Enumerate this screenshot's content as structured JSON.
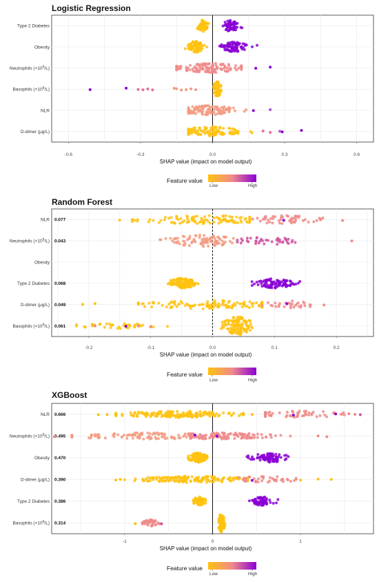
{
  "figure": {
    "legend": {
      "title": "Feature value",
      "low": "Low",
      "high": "High",
      "colors": [
        "#ffc20e",
        "#f08a8a",
        "#8a00d6"
      ]
    }
  },
  "chart_data": [
    {
      "type": "scatter",
      "subtype": "shap-beeswarm",
      "title": "Logistic Regression",
      "xlabel": "SHAP value (impact on model output)",
      "xlim": [
        -0.67,
        0.67
      ],
      "xticks": [
        -0.6,
        -0.3,
        0.0,
        0.3,
        0.6
      ],
      "xtick_labels": [
        "-0.6",
        "-0.3",
        "0.0",
        "0.3",
        "0.6"
      ],
      "zero_line": "solid",
      "grid": true,
      "features": [
        {
          "name": "Type 2 Diabetes",
          "sup": "",
          "suffix": "",
          "importance": null,
          "clusters": [
            {
              "center": -0.04,
              "spread": 0.012,
              "n": 60,
              "color": "#ffc20e",
              "h": 0.55
            },
            {
              "center": 0.075,
              "spread": 0.018,
              "n": 60,
              "color": "#8a00d6",
              "h": 0.55
            }
          ],
          "scatter": []
        },
        {
          "name": "Obesity",
          "sup": "",
          "suffix": "",
          "importance": null,
          "clusters": [
            {
              "center": -0.07,
              "spread": 0.018,
              "n": 80,
              "color": "#ffc20e",
              "h": 0.55
            },
            {
              "center": 0.09,
              "spread": 0.025,
              "n": 80,
              "color": "#8a00d6",
              "h": 0.5
            }
          ],
          "scatter": []
        },
        {
          "name": "Neutrophils (×10",
          "sup": "9",
          "suffix": "/L)",
          "importance": null,
          "clusters": [
            {
              "center": 0.0,
              "spread": 0.075,
              "n": 120,
              "color": "#f08a8a",
              "h": 0.45,
              "lo": -0.15,
              "hi": 0.12
            }
          ],
          "scatter": [
            {
              "x": 0.18,
              "c": "#8a00d6"
            },
            {
              "x": 0.24,
              "c": "#8a00d6"
            }
          ]
        },
        {
          "name": "Basophils (×10",
          "sup": "9",
          "suffix": "/L)",
          "importance": null,
          "clusters": [
            {
              "center": 0.02,
              "spread": 0.008,
              "n": 70,
              "color": "#ffc20e",
              "h": 0.75,
              "lo": 0.005,
              "hi": 0.035
            }
          ],
          "scatter": [
            {
              "x": -0.51,
              "c": "#8a00d6"
            },
            {
              "x": -0.36,
              "c": "#8a00d6"
            },
            {
              "x": -0.31,
              "c": "#e8708e"
            },
            {
              "x": -0.29,
              "c": "#e8708e"
            },
            {
              "x": -0.27,
              "c": "#e8708e"
            },
            {
              "x": -0.25,
              "c": "#e8708e"
            },
            {
              "x": -0.16,
              "c": "#f39a80"
            },
            {
              "x": -0.15,
              "c": "#f39a80"
            },
            {
              "x": -0.13,
              "c": "#f39a80"
            },
            {
              "x": -0.11,
              "c": "#f39a80"
            },
            {
              "x": -0.09,
              "c": "#f39a80"
            },
            {
              "x": -0.07,
              "c": "#f39a80"
            }
          ]
        },
        {
          "name": "NLR",
          "sup": "",
          "suffix": "",
          "importance": null,
          "clusters": [
            {
              "center": -0.02,
              "spread": 0.06,
              "n": 110,
              "color": "#f39a80",
              "h": 0.45,
              "lo": -0.1,
              "hi": 0.14
            }
          ],
          "scatter": [
            {
              "x": 0.17,
              "c": "#8a00d6"
            },
            {
              "x": 0.24,
              "c": "#b64cd3"
            }
          ]
        },
        {
          "name": "D-dimer (μg/L)",
          "sup": "",
          "suffix": "",
          "importance": null,
          "clusters": [
            {
              "center": -0.01,
              "spread": 0.07,
              "n": 110,
              "color": "#ffc20e",
              "h": 0.45,
              "lo": -0.1,
              "hi": 0.18
            }
          ],
          "scatter": [
            {
              "x": 0.21,
              "c": "#e8708e"
            },
            {
              "x": 0.24,
              "c": "#e8708e"
            },
            {
              "x": 0.28,
              "c": "#b64cd3"
            },
            {
              "x": 0.29,
              "c": "#8a00d6"
            },
            {
              "x": 0.37,
              "c": "#8a00d6"
            }
          ]
        }
      ]
    },
    {
      "type": "scatter",
      "subtype": "shap-beeswarm",
      "title": "Random Forest",
      "xlabel": "SHAP value (impact on model output)",
      "xlim": [
        -0.26,
        0.26
      ],
      "xticks": [
        -0.2,
        -0.1,
        0.0,
        0.1,
        0.2
      ],
      "xtick_labels": [
        "-0.2",
        "-0.1",
        "0.0",
        "0.1",
        "0.2"
      ],
      "zero_line": "dashed",
      "grid": true,
      "features": [
        {
          "name": "NLR",
          "sup": "",
          "suffix": "",
          "importance": "0.077",
          "clusters": [
            {
              "center": -0.02,
              "spread": 0.06,
              "n": 110,
              "color": "#ffc20e",
              "h": 0.4,
              "lo": -0.13,
              "hi": 0.06
            },
            {
              "center": 0.12,
              "spread": 0.035,
              "n": 50,
              "color": "#f08a8a",
              "h": 0.4,
              "lo": 0.06,
              "hi": 0.19
            }
          ],
          "scatter": [
            {
              "x": -0.15,
              "c": "#ffc20e"
            },
            {
              "x": 0.115,
              "c": "#8a00d6"
            },
            {
              "x": 0.21,
              "c": "#f08a8a"
            }
          ]
        },
        {
          "name": "Neutrophils (×10",
          "sup": "9",
          "suffix": "/L)",
          "importance": "0.043",
          "clusters": [
            {
              "center": -0.02,
              "spread": 0.03,
              "n": 90,
              "color": "#f39a80",
              "h": 0.55,
              "lo": -0.085,
              "hi": 0.04
            },
            {
              "center": 0.09,
              "spread": 0.03,
              "n": 40,
              "color": "#d0509e",
              "h": 0.35,
              "lo": 0.04,
              "hi": 0.15
            }
          ],
          "scatter": [
            {
              "x": 0.225,
              "c": "#f08a8a"
            }
          ]
        },
        {
          "name": "Obesity",
          "sup": "",
          "suffix": "",
          "importance": "",
          "clusters": [],
          "scatter": []
        },
        {
          "name": "Type 2 Diabetes",
          "sup": "",
          "suffix": "",
          "importance": "0.068",
          "clusters": [
            {
              "center": -0.05,
              "spread": 0.012,
              "n": 110,
              "color": "#ffc20e",
              "h": 0.5,
              "lo": -0.1,
              "hi": -0.01
            },
            {
              "center": 0.1,
              "spread": 0.018,
              "n": 90,
              "color": "#8a00d6",
              "h": 0.45,
              "lo": 0.03,
              "hi": 0.16
            }
          ],
          "scatter": []
        },
        {
          "name": "D-dimer (μg/L)",
          "sup": "",
          "suffix": "",
          "importance": "0.049",
          "clusters": [
            {
              "center": 0.0,
              "spread": 0.06,
              "n": 120,
              "color": "#ffc20e",
              "h": 0.4,
              "lo": -0.12,
              "hi": 0.08
            },
            {
              "center": 0.12,
              "spread": 0.025,
              "n": 30,
              "color": "#f08a8a",
              "h": 0.35,
              "lo": 0.08,
              "hi": 0.165
            }
          ],
          "scatter": [
            {
              "x": -0.21,
              "c": "#ffc20e"
            },
            {
              "x": -0.19,
              "c": "#ffc20e"
            },
            {
              "x": 0.18,
              "c": "#f08a8a"
            },
            {
              "x": 0.12,
              "c": "#8a00d6"
            }
          ]
        },
        {
          "name": "Basophils (×10",
          "sup": "9",
          "suffix": "/L)",
          "importance": "0.061",
          "clusters": [
            {
              "center": 0.04,
              "spread": 0.012,
              "n": 120,
              "color": "#ffc20e",
              "h": 0.9,
              "lo": 0.01,
              "hi": 0.07
            },
            {
              "center": -0.15,
              "spread": 0.035,
              "n": 40,
              "color": "#ffc20e",
              "h": 0.25,
              "lo": -0.22,
              "hi": -0.05
            }
          ],
          "scatter": [
            {
              "x": -0.19,
              "c": "#f08a8a"
            },
            {
              "x": -0.14,
              "c": "#8a00d6"
            },
            {
              "x": -0.12,
              "c": "#f08a8a"
            },
            {
              "x": -0.1,
              "c": "#f08a8a"
            }
          ]
        }
      ]
    },
    {
      "type": "scatter",
      "subtype": "shap-beeswarm",
      "title": "XGBoost",
      "xlabel": "SHAP value (impact on model output)",
      "xlim": [
        -1.83,
        1.83
      ],
      "xticks": [
        -1,
        0,
        1
      ],
      "xtick_labels": [
        "-1",
        "0",
        "1"
      ],
      "zero_line": "solid",
      "grid": true,
      "features": [
        {
          "name": "NLR",
          "sup": "",
          "suffix": "",
          "importance": "0.666",
          "clusters": [
            {
              "center": -0.4,
              "spread": 0.35,
              "n": 170,
              "color": "#ffc20e",
              "h": 0.3,
              "lo": -1.1,
              "hi": 0.35
            },
            {
              "center": 1.0,
              "spread": 0.3,
              "n": 60,
              "color": "#f08a8a",
              "h": 0.3,
              "lo": 0.6,
              "hi": 1.5
            }
          ],
          "scatter": [
            {
              "x": -1.3,
              "c": "#ffc20e"
            },
            {
              "x": -1.2,
              "c": "#ffc20e"
            },
            {
              "x": -1.1,
              "c": "#ffc20e"
            },
            {
              "x": 0.45,
              "c": "#ffc20e"
            },
            {
              "x": 0.92,
              "c": "#8a00d6"
            },
            {
              "x": 1.4,
              "c": "#8a00d6"
            },
            {
              "x": 1.55,
              "c": "#f08a8a"
            },
            {
              "x": 1.62,
              "c": "#f08a8a"
            },
            {
              "x": 1.68,
              "c": "#d0509e"
            }
          ]
        },
        {
          "name": "Neutrophils (×10",
          "sup": "9",
          "suffix": "/L)",
          "importance": "0.495",
          "clusters": [
            {
              "center": -0.7,
              "spread": 0.45,
              "n": 110,
              "color": "#f39a80",
              "h": 0.3,
              "lo": -1.6,
              "hi": -0.25
            },
            {
              "center": 0.1,
              "spread": 0.3,
              "n": 130,
              "color": "#f08a8a",
              "h": 0.3,
              "lo": -0.25,
              "hi": 0.9
            }
          ],
          "scatter": [
            {
              "x": -0.2,
              "c": "#8a00d6"
            },
            {
              "x": 0.05,
              "c": "#8a00d6"
            },
            {
              "x": 1.2,
              "c": "#f08a8a"
            },
            {
              "x": 1.3,
              "c": "#f08a8a"
            },
            {
              "x": -1.8,
              "c": "#f08a8a"
            }
          ]
        },
        {
          "name": "Obesity",
          "sup": "",
          "suffix": "",
          "importance": "0.470",
          "clusters": [
            {
              "center": -0.17,
              "spread": 0.05,
              "n": 110,
              "color": "#ffc20e",
              "h": 0.45,
              "lo": -0.28,
              "hi": -0.06
            },
            {
              "center": 0.65,
              "spread": 0.1,
              "n": 80,
              "color": "#8a00d6",
              "h": 0.45,
              "lo": 0.38,
              "hi": 0.92
            }
          ],
          "scatter": []
        },
        {
          "name": "D-dimer (μg/L)",
          "sup": "",
          "suffix": "",
          "importance": "0.390",
          "clusters": [
            {
              "center": -0.2,
              "spread": 0.35,
              "n": 160,
              "color": "#ffc20e",
              "h": 0.3,
              "lo": -1.0,
              "hi": 0.4
            },
            {
              "center": 0.6,
              "spread": 0.2,
              "n": 40,
              "color": "#f08a8a",
              "h": 0.3,
              "lo": 0.3,
              "hi": 0.95
            }
          ],
          "scatter": [
            {
              "x": -1.1,
              "c": "#ffc20e"
            },
            {
              "x": -1.05,
              "c": "#ffc20e"
            },
            {
              "x": 1.0,
              "c": "#ffc20e"
            },
            {
              "x": 1.2,
              "c": "#ffc20e"
            },
            {
              "x": 1.35,
              "c": "#ffc20e"
            },
            {
              "x": 0.45,
              "c": "#8a00d6"
            }
          ]
        },
        {
          "name": "Type 2 Diabetes",
          "sup": "",
          "suffix": "",
          "importance": "0.386",
          "clusters": [
            {
              "center": -0.15,
              "spread": 0.04,
              "n": 70,
              "color": "#ffc20e",
              "h": 0.4,
              "lo": -0.22,
              "hi": -0.08
            },
            {
              "center": 0.57,
              "spread": 0.07,
              "n": 70,
              "color": "#8a00d6",
              "h": 0.4,
              "lo": 0.4,
              "hi": 0.75
            }
          ],
          "scatter": []
        },
        {
          "name": "Basophils (×10",
          "sup": "9",
          "suffix": "/L)",
          "importance": "0.314",
          "clusters": [
            {
              "center": 0.1,
              "spread": 0.02,
              "n": 90,
              "color": "#ffc20e",
              "h": 0.85,
              "lo": 0.07,
              "hi": 0.14
            },
            {
              "center": -0.7,
              "spread": 0.05,
              "n": 40,
              "color": "#f08a8a",
              "h": 0.3,
              "lo": -0.8,
              "hi": -0.6
            }
          ],
          "scatter": [
            {
              "x": -0.88,
              "c": "#ffc20e"
            },
            {
              "x": -0.58,
              "c": "#d0509e"
            }
          ]
        }
      ]
    }
  ]
}
